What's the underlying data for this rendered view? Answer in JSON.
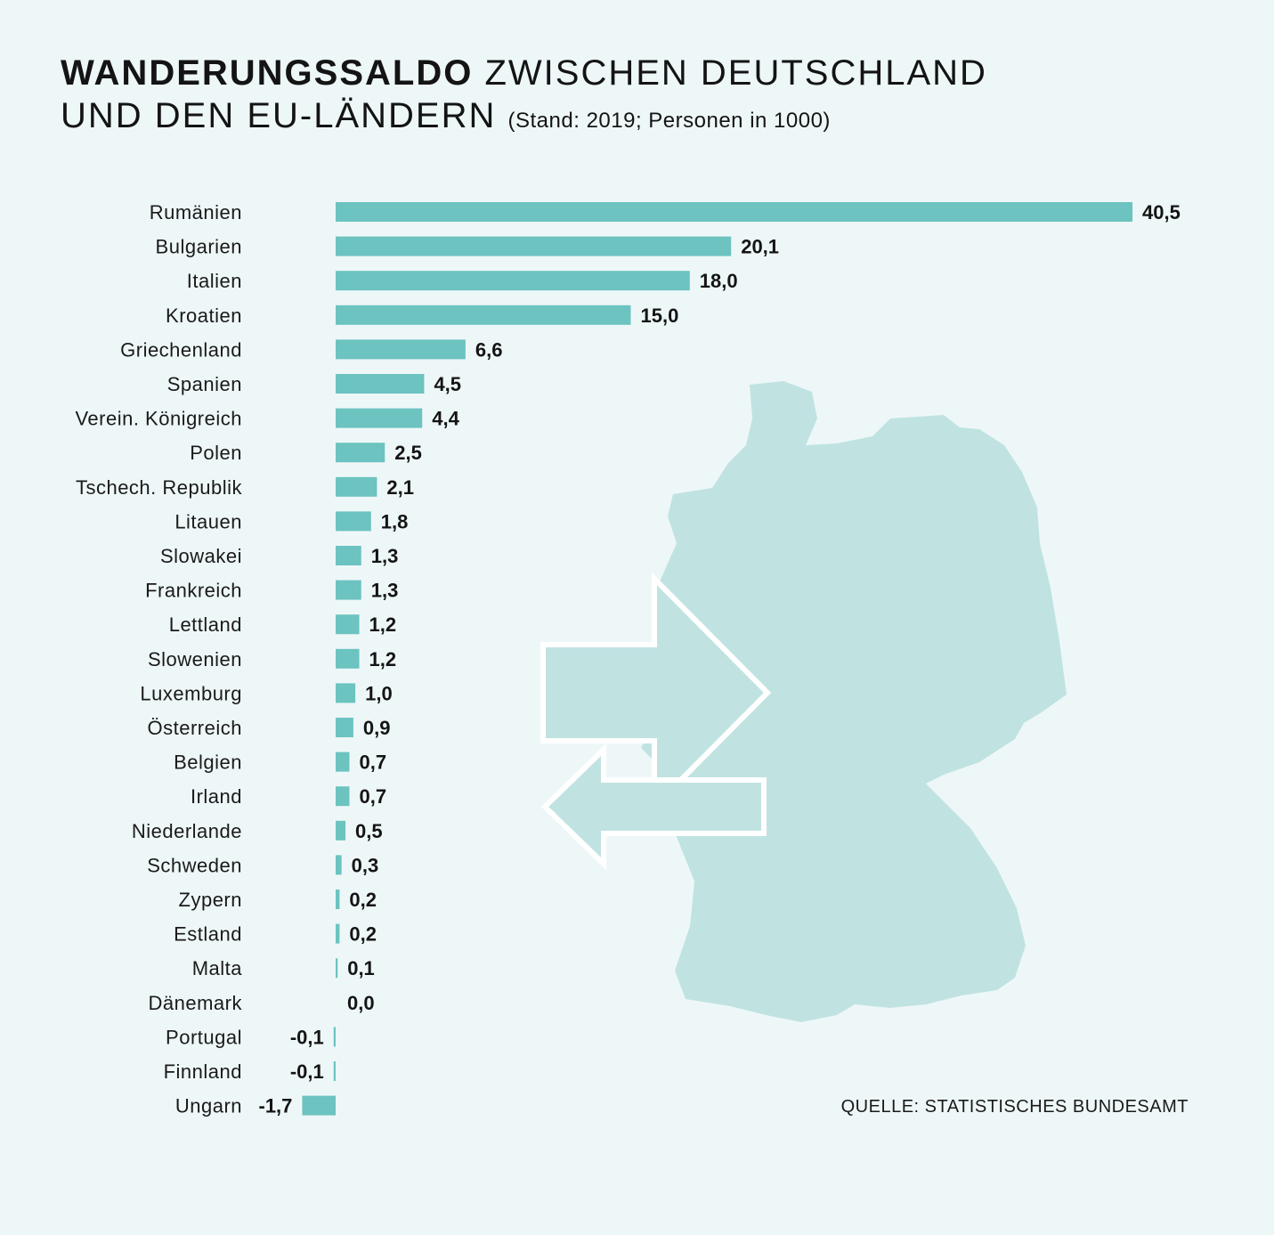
{
  "title": {
    "bold": "WANDERUNGSSALDO",
    "line1_rest": "ZWISCHEN DEUTSCHLAND",
    "line2": "UND DEN EU-LÄNDERN",
    "note": "(Stand: 2019; Personen in 1000)"
  },
  "source": "QUELLE: STATISTISCHES BUNDESAMT",
  "colors": {
    "bar": "#6cc3c0",
    "map": "#c0e3e2",
    "arrow_outline": "#ffffff",
    "background": "#eef7f8"
  },
  "chart_data": {
    "type": "bar",
    "orientation": "horizontal",
    "title": "WANDERUNGSSALDO ZWISCHEN DEUTSCHLAND UND DEN EU-LÄNDERN",
    "subtitle": "(Stand: 2019; Personen in 1000)",
    "xlim": [
      -1.7,
      40.5
    ],
    "grid": false,
    "categories": [
      "Rumänien",
      "Bulgarien",
      "Italien",
      "Kroatien",
      "Griechenland",
      "Spanien",
      "Verein. Königreich",
      "Polen",
      "Tschech. Republik",
      "Litauen",
      "Slowakei",
      "Frankreich",
      "Lettland",
      "Slowenien",
      "Luxemburg",
      "Österreich",
      "Belgien",
      "Irland",
      "Niederlande",
      "Schweden",
      "Zypern",
      "Estland",
      "Malta",
      "Dänemark",
      "Portugal",
      "Finnland",
      "Ungarn"
    ],
    "values": [
      40.5,
      20.1,
      18.0,
      15.0,
      6.6,
      4.5,
      4.4,
      2.5,
      2.1,
      1.8,
      1.3,
      1.3,
      1.2,
      1.2,
      1.0,
      0.9,
      0.7,
      0.7,
      0.5,
      0.3,
      0.2,
      0.2,
      0.1,
      0.0,
      -0.1,
      -0.1,
      -1.7
    ],
    "value_labels": [
      "40,5",
      "20,1",
      "18,0",
      "15,0",
      "6,6",
      "4,5",
      "4,4",
      "2,5",
      "2,1",
      "1,8",
      "1,3",
      "1,3",
      "1,2",
      "1,2",
      "1,0",
      "0,9",
      "0,7",
      "0,7",
      "0,5",
      "0,3",
      "0,2",
      "0,2",
      "0,1",
      "0,0",
      "-0,1",
      "-0,1",
      "-1,7"
    ]
  }
}
